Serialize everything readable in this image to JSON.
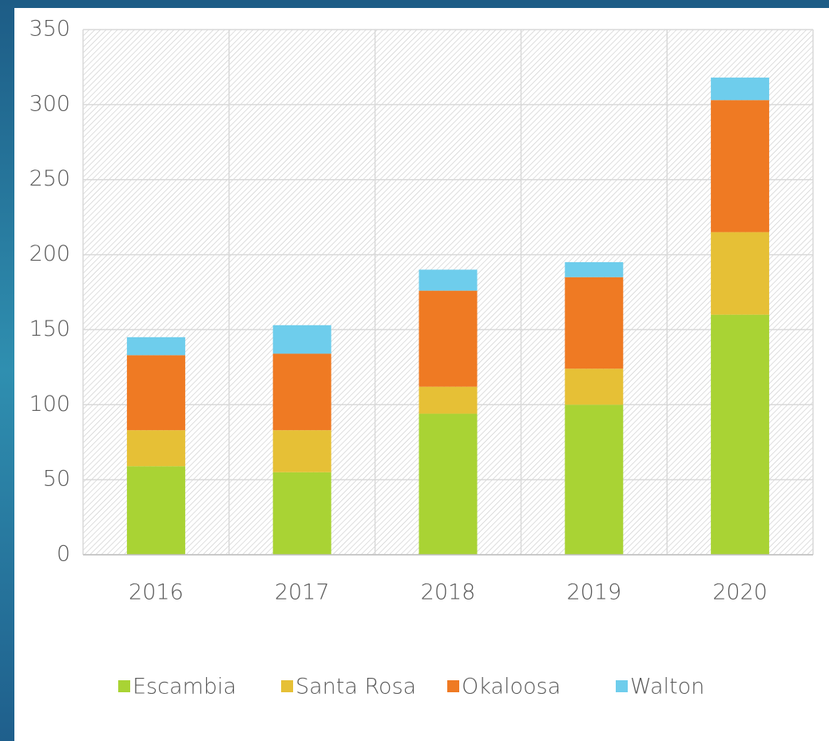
{
  "chart_data": {
    "type": "stacked_bar",
    "categories": [
      "2016",
      "2017",
      "2018",
      "2019",
      "2020"
    ],
    "series": [
      {
        "name": "Escambia",
        "color": "#a9d334",
        "values": [
          59,
          55,
          94,
          100,
          160
        ]
      },
      {
        "name": "Santa Rosa",
        "color": "#e6c036",
        "values": [
          24,
          28,
          18,
          24,
          55
        ]
      },
      {
        "name": "Okaloosa",
        "color": "#ef7a23",
        "values": [
          50,
          51,
          64,
          61,
          88
        ]
      },
      {
        "name": "Walton",
        "color": "#6ecdec",
        "values": [
          12,
          19,
          14,
          10,
          15
        ]
      }
    ],
    "ylim": [
      0,
      350
    ],
    "yticks": [
      0,
      50,
      100,
      150,
      200,
      250,
      300,
      350
    ],
    "grid": true,
    "legend": "bottom"
  }
}
